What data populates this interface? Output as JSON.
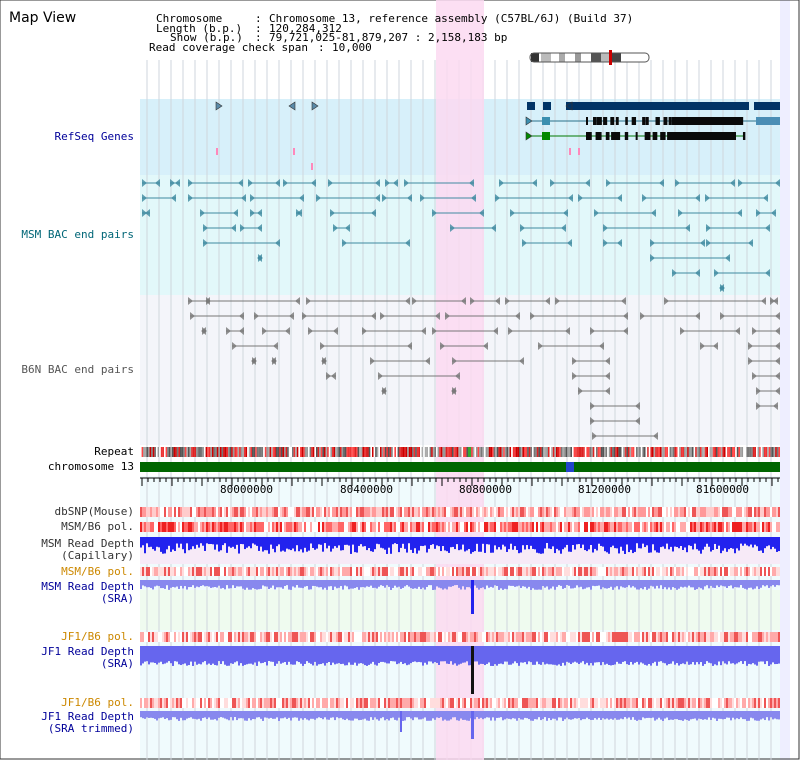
{
  "page": {
    "title": "Map View",
    "colors": {
      "refseq_bg": "#d7f0fa",
      "msm_bac_bg": "#e2f8fa",
      "b6n_bac_bg": "#f4f5fa",
      "highlight": "#fbd9f1",
      "genes": "#003366",
      "msm_bac": "#3f8aa0",
      "b6n_bac": "#777777",
      "chromosome": "#006600"
    }
  },
  "header": {
    "chromosome_key": "Chromosome",
    "chromosome_value": "Chromosome 13, reference assembly (C57BL/6J) (Build 37)",
    "length_key": "Length (b.p.)",
    "length_value": "120,284,312",
    "show_key": "Show (b.p.)",
    "show_value": "79,721,025-81,879,207 : 2,158,183 bp",
    "coverage_key": "Read coverage check span",
    "coverage_value": "10,000"
  },
  "tracks": {
    "refseq_genes": "RefSeq Genes",
    "msm_bac": "MSM BAC end pairs",
    "b6n_bac": "B6N BAC end pairs",
    "repeat": "Repeat",
    "chromosome": "chromosome 13",
    "dbsnp": "dbSNP(Mouse)",
    "msm_b6_pol": "MSM/B6 pol.",
    "msm_depth_cap": "MSM Read Depth\n(Capillary)",
    "msm_b6_pol_2": "MSM/B6 pol.",
    "msm_depth_sra": "MSM Read Depth\n(SRA)",
    "jf1_b6_pol": "JF1/B6 pol.",
    "jf1_depth_sra": "JF1 Read Depth\n(SRA)",
    "jf1_b6_pol_2": "JF1/B6 pol.",
    "jf1_depth_trim": "JF1 Read Depth\n(SRA trimmed)"
  },
  "axis": {
    "ticks": [
      "80000000",
      "80400000",
      "80800000",
      "81200000",
      "81600000"
    ]
  }
}
